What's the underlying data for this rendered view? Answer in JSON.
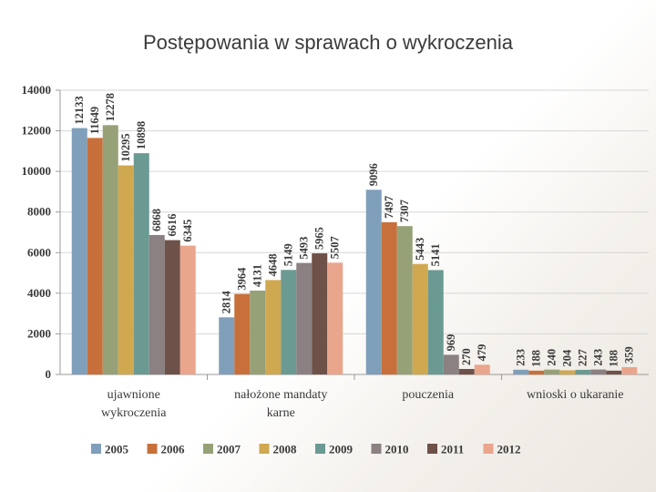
{
  "title": "Postępowania w sprawach o wykroczenia",
  "chart_data": {
    "type": "bar",
    "title": "",
    "xlabel": "",
    "ylabel": "",
    "ylim": [
      0,
      14000
    ],
    "yticks": [
      0,
      2000,
      4000,
      6000,
      8000,
      10000,
      12000,
      14000
    ],
    "ytick_labels": [
      "0",
      "2000",
      "4000",
      "6000",
      "8000",
      "10000",
      "12000",
      "14000"
    ],
    "grid": true,
    "legend_position": "bottom",
    "categories": [
      [
        "ujawnione",
        "wykroczenia"
      ],
      [
        "nałożone mandaty",
        "karne"
      ],
      [
        "pouczenia"
      ],
      [
        "wnioski o ukaranie"
      ]
    ],
    "series": [
      {
        "name": "2005",
        "color": "#7f9fba",
        "values": [
          12133,
          2814,
          9096,
          233
        ],
        "labels": [
          "12133",
          "2814",
          "9096",
          "233"
        ]
      },
      {
        "name": "2006",
        "color": "#c8703b",
        "values": [
          11649,
          3964,
          7497,
          188
        ],
        "labels": [
          "11649",
          "3964",
          "7497",
          "188"
        ]
      },
      {
        "name": "2007",
        "color": "#97a177",
        "values": [
          12278,
          4131,
          7307,
          240
        ],
        "labels": [
          "12278",
          "4131",
          "7307",
          "240"
        ]
      },
      {
        "name": "2008",
        "color": "#cfa850",
        "values": [
          10295,
          4648,
          5443,
          204
        ],
        "labels": [
          "10295",
          "4648",
          "5443",
          "204"
        ]
      },
      {
        "name": "2009",
        "color": "#6b9a92",
        "values": [
          10898,
          5149,
          5141,
          227
        ],
        "labels": [
          "10898",
          "5149",
          "5141",
          "227"
        ]
      },
      {
        "name": "2010",
        "color": "#8b8082",
        "values": [
          6868,
          5493,
          969,
          243
        ],
        "labels": [
          "6868",
          "5493",
          "969",
          "243"
        ]
      },
      {
        "name": "2011",
        "color": "#6e5148",
        "values": [
          6616,
          5965,
          270,
          188
        ],
        "labels": [
          "6616",
          "5965",
          "270",
          "188"
        ]
      },
      {
        "name": "2012",
        "color": "#eaa58d",
        "values": [
          6345,
          5507,
          479,
          359
        ],
        "labels": [
          "6345",
          "5507",
          "479",
          "359"
        ]
      }
    ]
  }
}
